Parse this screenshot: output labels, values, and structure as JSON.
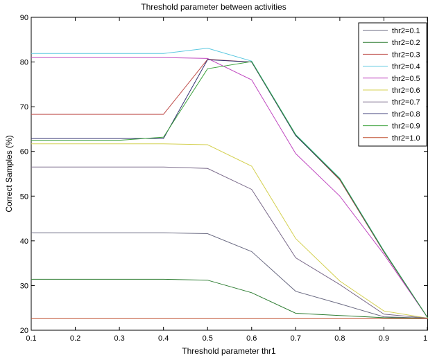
{
  "chart_data": {
    "type": "line",
    "title": "Threshold parameter between activities",
    "xlabel": "Threshold parameter thr1",
    "ylabel": "Correct Samples (%)",
    "xlim": [
      0.1,
      1.0
    ],
    "ylim": [
      20,
      90
    ],
    "xticks": [
      "0.1",
      "0.2",
      "0.3",
      "0.4",
      "0.5",
      "0.6",
      "0.7",
      "0.8",
      "0.9",
      "1"
    ],
    "yticks": [
      "20",
      "30",
      "40",
      "50",
      "60",
      "70",
      "80",
      "90"
    ],
    "grid": false,
    "legend_position": "top-right",
    "x": [
      0.1,
      0.2,
      0.3,
      0.4,
      0.5,
      0.6,
      0.7,
      0.8,
      0.9,
      1.0
    ],
    "series": [
      {
        "name": "thr2=0.1",
        "color": "#6a6a82",
        "values": [
          41.8,
          41.8,
          41.8,
          41.8,
          41.6,
          37.6,
          28.7,
          25.9,
          23.0,
          22.7
        ]
      },
      {
        "name": "thr2=0.2",
        "color": "#2e7d32",
        "values": [
          31.4,
          31.4,
          31.4,
          31.4,
          31.2,
          28.4,
          23.8,
          23.3,
          22.8,
          22.7
        ]
      },
      {
        "name": "thr2=0.3",
        "color": "#c0504d",
        "values": [
          68.3,
          68.3,
          68.3,
          68.3,
          80.6,
          80.0,
          63.6,
          53.6,
          37.5,
          22.7
        ]
      },
      {
        "name": "thr2=0.4",
        "color": "#5bc8e0",
        "values": [
          81.9,
          81.9,
          81.9,
          81.9,
          83.1,
          80.2,
          63.8,
          54.0,
          37.8,
          22.7
        ]
      },
      {
        "name": "thr2=0.5",
        "color": "#c048c0",
        "values": [
          81.0,
          81.0,
          81.0,
          81.0,
          80.8,
          76.0,
          59.5,
          50.0,
          37.0,
          22.7
        ]
      },
      {
        "name": "thr2=0.6",
        "color": "#d4d050",
        "values": [
          61.7,
          61.7,
          61.7,
          61.7,
          61.5,
          56.7,
          40.5,
          31.0,
          24.3,
          22.7
        ]
      },
      {
        "name": "thr2=0.7",
        "color": "#7a6a8a",
        "values": [
          56.5,
          56.5,
          56.5,
          56.5,
          56.2,
          51.5,
          36.2,
          30.2,
          23.6,
          22.7
        ]
      },
      {
        "name": "thr2=0.8",
        "color": "#303070",
        "values": [
          62.9,
          62.9,
          62.9,
          62.9,
          80.5,
          80.0,
          63.5,
          53.8,
          37.6,
          22.7
        ]
      },
      {
        "name": "thr2=0.9",
        "color": "#3aa03a",
        "values": [
          62.5,
          62.5,
          62.5,
          63.2,
          78.5,
          80.1,
          63.7,
          53.9,
          37.7,
          22.7
        ]
      },
      {
        "name": "thr2=1.0",
        "color": "#c05030",
        "values": [
          22.6,
          22.6,
          22.6,
          22.6,
          22.6,
          22.6,
          22.6,
          22.6,
          22.6,
          22.6
        ]
      }
    ]
  }
}
